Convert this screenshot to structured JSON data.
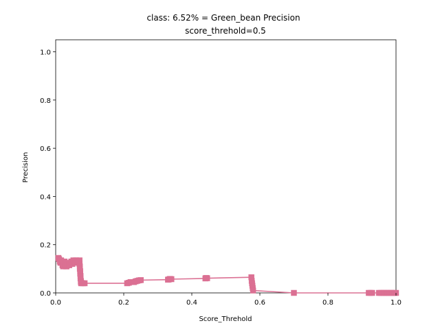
{
  "chart_data": {
    "type": "line",
    "title_line1": "class: 6.52% = Green_bean Precision",
    "title_line2": "score_threhold=0.5",
    "xlabel": "Score_Threhold",
    "ylabel": "Precision",
    "xlim": [
      0.0,
      1.0
    ],
    "ylim": [
      0.0,
      1.05
    ],
    "x_ticks": [
      "0.0",
      "0.2",
      "0.4",
      "0.6",
      "0.8",
      "1.0"
    ],
    "y_ticks": [
      "0.0",
      "0.2",
      "0.4",
      "0.6",
      "0.8",
      "1.0"
    ],
    "grid": false,
    "legend": "none",
    "series_color": "#db7093",
    "marker": "square",
    "series": [
      {
        "x": [
          0.008,
          0.01,
          0.012,
          0.014,
          0.016,
          0.018,
          0.02,
          0.022,
          0.024,
          0.026,
          0.028,
          0.03,
          0.032,
          0.035,
          0.038,
          0.04,
          0.043,
          0.046,
          0.049,
          0.052,
          0.055,
          0.058,
          0.06,
          0.063,
          0.066,
          0.068,
          0.07,
          0.07,
          0.071,
          0.071,
          0.072,
          0.072,
          0.073,
          0.073,
          0.074,
          0.074,
          0.075,
          0.075,
          0.08,
          0.085,
          0.21,
          0.215,
          0.22,
          0.23,
          0.235,
          0.24,
          0.245,
          0.25,
          0.33,
          0.333,
          0.336,
          0.34,
          0.44,
          0.442,
          0.445,
          0.575,
          0.576,
          0.577,
          0.578,
          0.579,
          0.58,
          0.7,
          0.92,
          0.925,
          0.93,
          0.95,
          0.955,
          0.96,
          0.965,
          0.97,
          0.975,
          0.98,
          0.985,
          0.99,
          0.995,
          1.0
        ],
        "y": [
          0.145,
          0.14,
          0.13,
          0.125,
          0.135,
          0.128,
          0.115,
          0.11,
          0.12,
          0.13,
          0.115,
          0.11,
          0.11,
          0.115,
          0.12,
          0.115,
          0.125,
          0.13,
          0.12,
          0.135,
          0.13,
          0.125,
          0.135,
          0.13,
          0.128,
          0.13,
          0.135,
          0.12,
          0.11,
          0.1,
          0.09,
          0.08,
          0.07,
          0.06,
          0.05,
          0.045,
          0.04,
          0.042,
          0.04,
          0.04,
          0.04,
          0.042,
          0.045,
          0.045,
          0.048,
          0.05,
          0.052,
          0.053,
          0.055,
          0.056,
          0.058,
          0.057,
          0.06,
          0.062,
          0.061,
          0.065,
          0.05,
          0.04,
          0.03,
          0.02,
          0.01,
          0.0,
          0.0,
          0.0,
          0.0,
          0.0,
          0.0,
          0.0,
          0.0,
          0.0,
          0.0,
          0.0,
          0.0,
          0.0,
          0.0,
          0.0
        ]
      }
    ]
  }
}
